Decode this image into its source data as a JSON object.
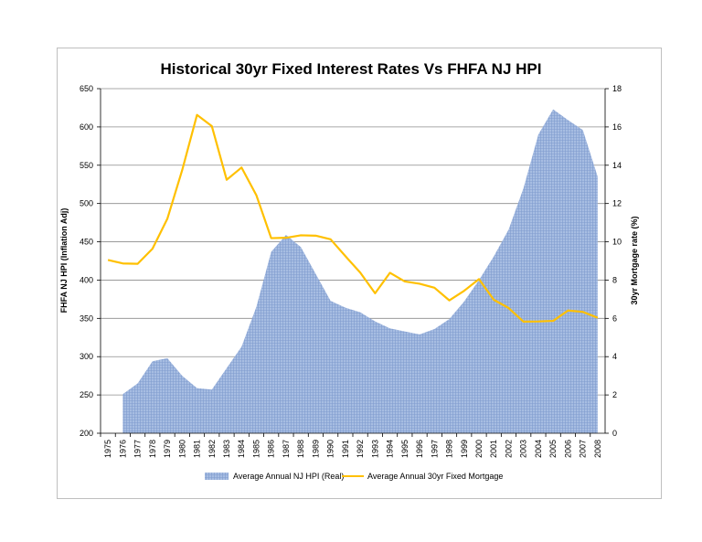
{
  "chart_data": {
    "type": "area",
    "title": "Historical 30yr Fixed Interest Rates Vs FHFA NJ HPI",
    "ylabel_left": "FHFA NJ HPI (Inflation Adj)",
    "ylabel_right": "30yr Mortgage rate (%)",
    "xlabel": "",
    "categories": [
      "1975",
      "1976",
      "1977",
      "1978",
      "1979",
      "1980",
      "1981",
      "1982",
      "1983",
      "1984",
      "1985",
      "1986",
      "1987",
      "1988",
      "1989",
      "1990",
      "1991",
      "1992",
      "1993",
      "1994",
      "1995",
      "1996",
      "1997",
      "1998",
      "1999",
      "2000",
      "2001",
      "2002",
      "2003",
      "2004",
      "2005",
      "2006",
      "2007",
      "2008"
    ],
    "ylim_left": [
      200,
      650
    ],
    "yticks_left": [
      200,
      250,
      300,
      350,
      400,
      450,
      500,
      550,
      600,
      650
    ],
    "ylim_right": [
      0,
      18
    ],
    "yticks_right": [
      0,
      2,
      4,
      6,
      8,
      10,
      12,
      14,
      16,
      18
    ],
    "grid": true,
    "legend_position": "bottom",
    "series": [
      {
        "name": "Average Annual NJ HPI (Real)",
        "kind": "area",
        "axis": "left",
        "color": "#8eaadb",
        "values": [
          null,
          251,
          265,
          294,
          298,
          275,
          259,
          257,
          285,
          313,
          365,
          437,
          459,
          443,
          408,
          373,
          364,
          358,
          346,
          337,
          333,
          329,
          336,
          349,
          372,
          400,
          431,
          466,
          520,
          590,
          623,
          609,
          596,
          535
        ]
      },
      {
        "name": "Average Annual 30yr Fixed Mortgage",
        "kind": "line",
        "axis": "right",
        "color": "#ffc000",
        "values": [
          9.05,
          8.87,
          8.85,
          9.64,
          11.2,
          13.74,
          16.63,
          16.04,
          13.24,
          13.88,
          12.43,
          10.19,
          10.21,
          10.34,
          10.32,
          10.13,
          9.25,
          8.39,
          7.31,
          8.38,
          7.93,
          7.81,
          7.6,
          6.94,
          7.44,
          8.05,
          6.97,
          6.54,
          5.83,
          5.84,
          5.87,
          6.41,
          6.34,
          6.03
        ]
      }
    ]
  }
}
